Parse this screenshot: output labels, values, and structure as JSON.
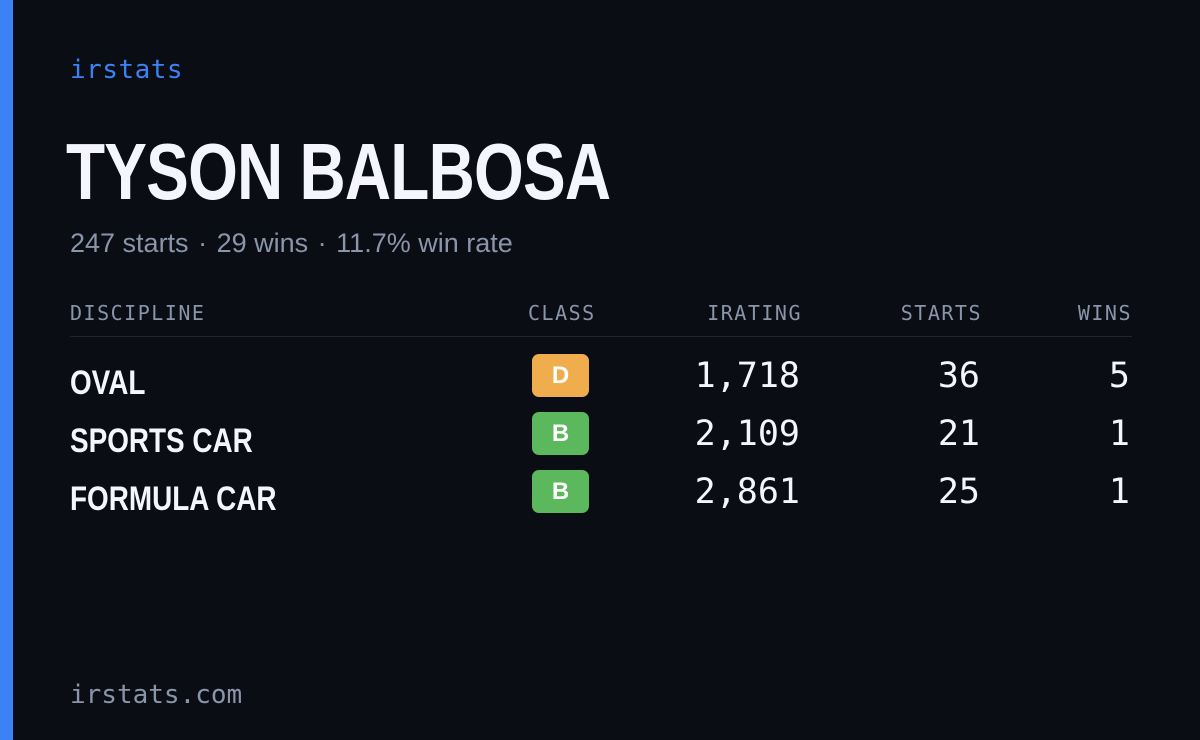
{
  "brand": "irstats",
  "driver": {
    "name": "TYSON BALBOSA",
    "starts_text": "247 starts",
    "wins_text": "29 wins",
    "win_rate_text": "11.7% win rate",
    "separator": "·"
  },
  "table": {
    "headers": {
      "discipline": "DISCIPLINE",
      "class": "CLASS",
      "irating": "IRATING",
      "starts": "STARTS",
      "wins": "WINS"
    },
    "rows": [
      {
        "discipline": "OVAL",
        "class": "D",
        "class_color": "#f0ad4e",
        "irating": "1,718",
        "starts": "36",
        "wins": "5"
      },
      {
        "discipline": "SPORTS CAR",
        "class": "B",
        "class_color": "#5cb85c",
        "irating": "2,109",
        "starts": "21",
        "wins": "1"
      },
      {
        "discipline": "FORMULA CAR",
        "class": "B",
        "class_color": "#5cb85c",
        "irating": "2,861",
        "starts": "25",
        "wins": "1"
      }
    ]
  },
  "footer": "irstats.com",
  "colors": {
    "background": "#0a0d14",
    "accent": "#3b82f6",
    "muted": "#8b95aa",
    "text": "#f4f6fb"
  }
}
